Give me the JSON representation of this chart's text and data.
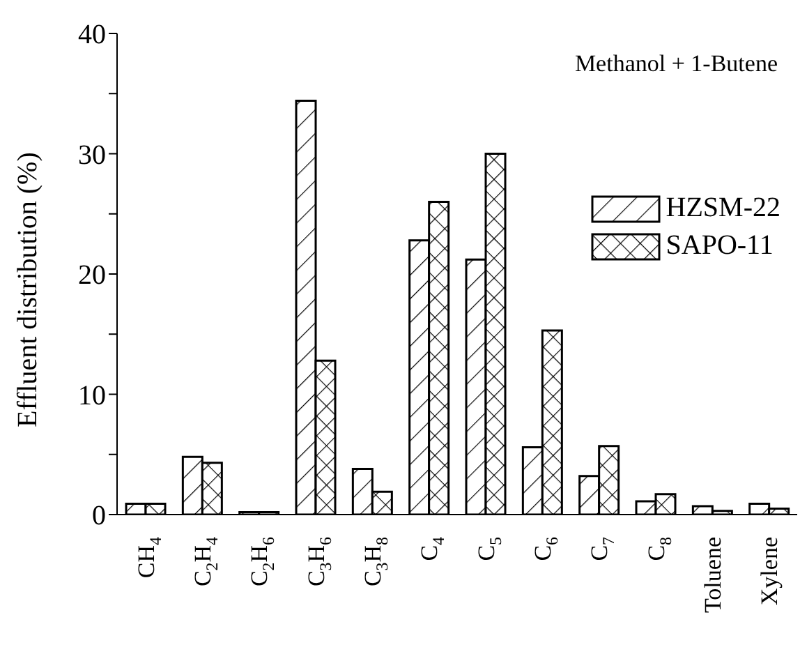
{
  "chart_data": {
    "type": "bar",
    "ylabel": "Effluent distribution (%)",
    "categories": [
      "CH$_{4}$",
      "C$_{2}$H$_{4}$",
      "C$_{2}$H$_{6}$",
      "C$_{3}$H$_{6}$",
      "C$_{3}$H$_{8}$",
      "C$_{4}$",
      "C$_{5}$",
      "C$_{6}$",
      "C$_{7}$",
      "C$_{8}$",
      "Toluene",
      "Xylene"
    ],
    "series": [
      {
        "name": "HZSM-22",
        "color": "#000000",
        "values": [
          0.9,
          4.8,
          0.2,
          34.4,
          3.8,
          22.8,
          21.2,
          5.6,
          3.2,
          1.1,
          0.7,
          0.9
        ]
      },
      {
        "name": "SAPO-11",
        "color": "#000000",
        "values": [
          0.9,
          4.3,
          0.2,
          12.8,
          1.9,
          26.0,
          30.0,
          15.3,
          5.7,
          1.7,
          0.3,
          0.5
        ]
      }
    ],
    "ylim": [
      0,
      40
    ],
    "yticks": [
      0,
      {
        "value": 5,
        "label": null
      },
      10,
      {
        "value": 15,
        "label": null
      },
      20,
      {
        "value": 25,
        "label": null
      },
      30,
      {
        "value": 35,
        "label": null
      },
      40
    ],
    "annotations": [
      "Methanol + 1-Butene"
    ],
    "legend": "top right",
    "grid": false
  }
}
